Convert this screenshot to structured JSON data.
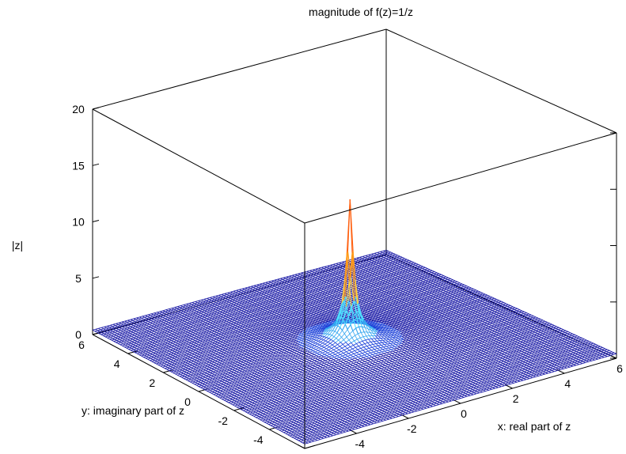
{
  "chart_data": {
    "type": "surface",
    "title": "magnitude of f(z)=1/z",
    "function": "|1/z|",
    "xlabel": "x: real part of z",
    "ylabel": "y: imaginary part of z",
    "zlabel": "|z|",
    "xlim": [
      -6,
      6
    ],
    "ylim": [
      -6,
      6
    ],
    "zlim": [
      0,
      20
    ],
    "x_ticks": [
      "-6",
      "-4",
      "-2",
      "0",
      "2",
      "4",
      "6"
    ],
    "y_ticks": [
      "-6",
      "-4",
      "-2",
      "0",
      "2",
      "4",
      "6"
    ],
    "z_ticks": [
      "0",
      "5",
      "10",
      "15",
      "20"
    ],
    "grid_samples": 101,
    "peak_value": 13,
    "colormap": [
      "#0a0aa0",
      "#1a3fd8",
      "#36a7f0",
      "#4ee0ff",
      "#ffd040",
      "#ff9a18",
      "#ff6010"
    ]
  }
}
